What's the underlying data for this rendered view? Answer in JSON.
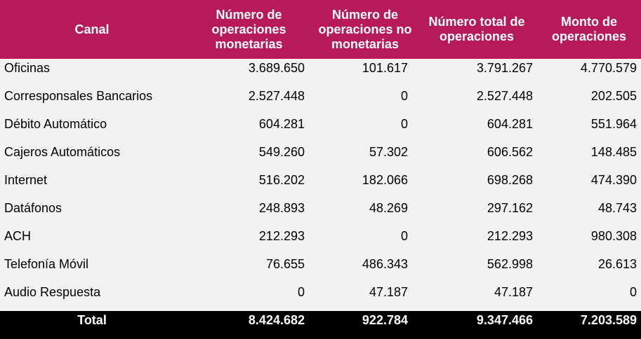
{
  "headers": [
    "Canal",
    "Número de operaciones monetarias",
    "Número de operaciones no monetarias",
    "Número total de operaciones",
    "Monto de operaciones"
  ],
  "rows": [
    {
      "canal": "Oficinas",
      "monetarias": "3.689.650",
      "no_monetarias": "101.617",
      "total": "3.791.267",
      "monto": "4.770.579"
    },
    {
      "canal": "Corresponsales Bancarios",
      "monetarias": "2.527.448",
      "no_monetarias": "0",
      "total": "2.527.448",
      "monto": "202.505"
    },
    {
      "canal": "Débito Automático",
      "monetarias": "604.281",
      "no_monetarias": "0",
      "total": "604.281",
      "monto": "551.964"
    },
    {
      "canal": "Cajeros Automáticos",
      "monetarias": "549.260",
      "no_monetarias": "57.302",
      "total": "606.562",
      "monto": "148.485"
    },
    {
      "canal": "Internet",
      "monetarias": "516.202",
      "no_monetarias": "182.066",
      "total": "698.268",
      "monto": "474.390"
    },
    {
      "canal": "Datáfonos",
      "monetarias": "248.893",
      "no_monetarias": "48.269",
      "total": "297.162",
      "monto": "48.743"
    },
    {
      "canal": "ACH",
      "monetarias": "212.293",
      "no_monetarias": "0",
      "total": "212.293",
      "monto": "980.308"
    },
    {
      "canal": "Telefonía Móvil",
      "monetarias": "76.655",
      "no_monetarias": "486.343",
      "total": "562.998",
      "monto": "26.613"
    },
    {
      "canal": "Audio Respuesta",
      "monetarias": "0",
      "no_monetarias": "47.187",
      "total": "47.187",
      "monto": "0"
    }
  ],
  "totals": {
    "canal": "Total",
    "monetarias": "8.424.682",
    "no_monetarias": "922.784",
    "total": "9.347.466",
    "monto": "7.203.589"
  },
  "colors": {
    "header_bg": "#B81A59",
    "row_bg": "#F2F2F2",
    "total_bg": "#000000"
  }
}
